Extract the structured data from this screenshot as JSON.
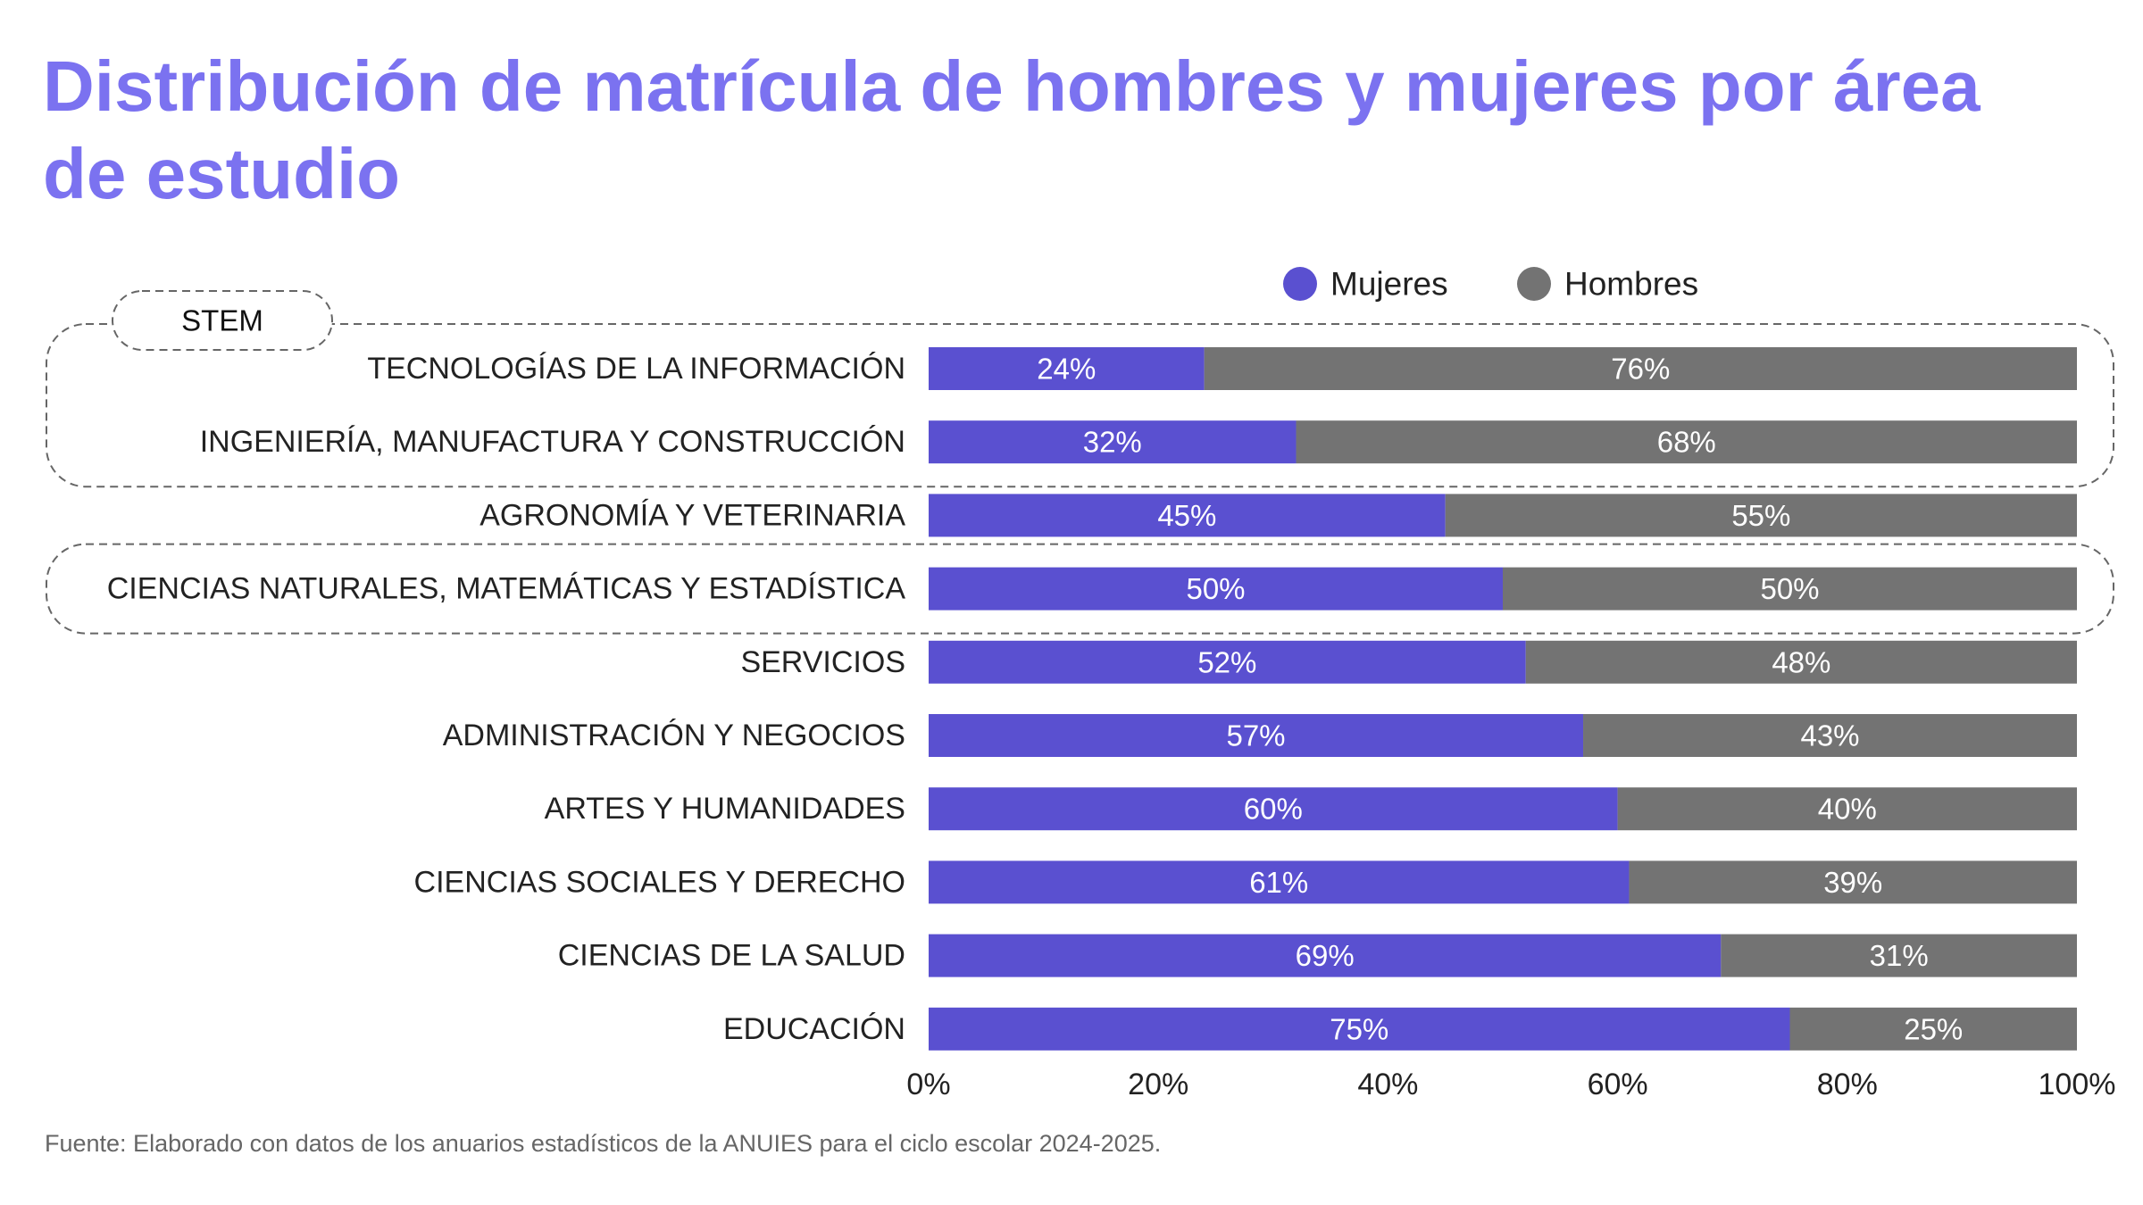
{
  "chart_data": {
    "type": "bar",
    "orientation": "horizontal",
    "stacked": true,
    "title": "Distribución de matrícula de hombres y mujeres por área de estudio",
    "categories": [
      "TECNOLOGÍAS DE LA INFORMACIÓN",
      "INGENIERÍA, MANUFACTURA Y CONSTRUCCIÓN",
      "AGRONOMÍA Y VETERINARIA",
      "CIENCIAS NATURALES, MATEMÁTICAS Y ESTADÍSTICA",
      "SERVICIOS",
      "ADMINISTRACIÓN Y NEGOCIOS",
      "ARTES Y HUMANIDADES",
      "CIENCIAS SOCIALES Y DERECHO",
      "CIENCIAS DE LA SALUD",
      "EDUCACIÓN"
    ],
    "series": [
      {
        "name": "Mujeres",
        "color": "#5a50d0",
        "values": [
          24,
          32,
          45,
          50,
          52,
          57,
          60,
          61,
          69,
          75
        ]
      },
      {
        "name": "Hombres",
        "color": "#737373",
        "values": [
          76,
          68,
          55,
          50,
          48,
          43,
          40,
          39,
          31,
          25
        ]
      }
    ],
    "xlim": [
      0,
      100
    ],
    "xticks": [
      "0%",
      "20%",
      "40%",
      "60%",
      "80%",
      "100%"
    ],
    "value_suffix": "%",
    "legend": "top-right",
    "highlight": {
      "label": "STEM",
      "groups": [
        [
          0,
          1
        ],
        [
          3,
          3
        ]
      ]
    },
    "source": "Fuente: Elaborado con datos de los anuarios estadísticos de la ANUIES para el ciclo escolar 2024-2025."
  }
}
